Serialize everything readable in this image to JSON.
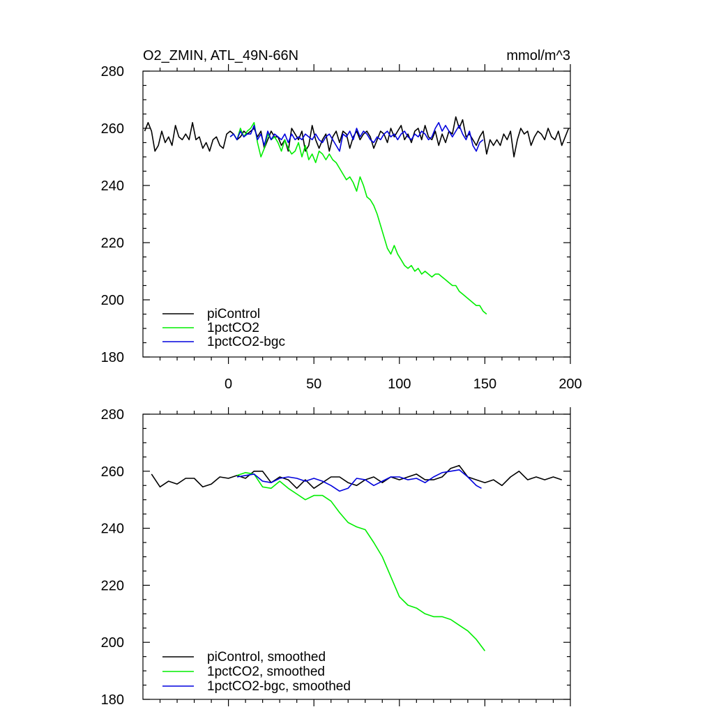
{
  "chart_data": [
    {
      "type": "line",
      "title": "O2_ZMIN, ATL_49N-66N",
      "units": "mmol/m^3",
      "xlim": [
        -50,
        200
      ],
      "ylim": [
        180,
        280
      ],
      "xticks": [
        0,
        50,
        100,
        150,
        200
      ],
      "yticks": [
        180,
        200,
        220,
        240,
        260,
        280
      ],
      "legend_position": "bottom-left",
      "series": [
        {
          "name": "piControl",
          "color": "#000000",
          "x": [
            -49,
            -47,
            -45,
            -43,
            -41,
            -39,
            -37,
            -35,
            -33,
            -31,
            -29,
            -27,
            -25,
            -23,
            -21,
            -19,
            -17,
            -15,
            -13,
            -11,
            -9,
            -7,
            -5,
            -3,
            -1,
            1,
            3,
            5,
            7,
            9,
            11,
            13,
            15,
            17,
            19,
            21,
            23,
            25,
            27,
            29,
            31,
            33,
            35,
            37,
            39,
            41,
            43,
            45,
            47,
            49,
            51,
            53,
            55,
            57,
            59,
            61,
            63,
            65,
            67,
            69,
            71,
            73,
            75,
            77,
            79,
            81,
            83,
            85,
            87,
            89,
            91,
            93,
            95,
            97,
            99,
            101,
            103,
            105,
            107,
            109,
            111,
            113,
            115,
            117,
            119,
            121,
            123,
            125,
            127,
            129,
            131,
            133,
            135,
            137,
            139,
            141,
            143,
            145,
            147,
            149,
            151,
            153,
            155,
            157,
            159,
            161,
            163,
            165,
            167,
            169,
            171,
            173,
            175,
            177,
            179,
            181,
            183,
            185,
            187,
            189,
            191,
            193,
            195,
            197,
            199
          ],
          "values": [
            259,
            262,
            259,
            252,
            254,
            259,
            255,
            257,
            254,
            261,
            257,
            256,
            258,
            256,
            262,
            256,
            257,
            253,
            255,
            252,
            256,
            257,
            254,
            253,
            258,
            259,
            258,
            256,
            257,
            259,
            258,
            259,
            260,
            257,
            259,
            253,
            256,
            259,
            257,
            257,
            254,
            256,
            252,
            260,
            258,
            256,
            259,
            252,
            254,
            261,
            256,
            253,
            256,
            258,
            252,
            257,
            259,
            255,
            259,
            258,
            253,
            257,
            259,
            256,
            258,
            259,
            257,
            253,
            256,
            259,
            258,
            255,
            260,
            257,
            259,
            261,
            256,
            258,
            255,
            259,
            260,
            256,
            261,
            257,
            256,
            259,
            254,
            258,
            255,
            259,
            258,
            264,
            260,
            263,
            257,
            258,
            256,
            254,
            257,
            259,
            251,
            256,
            254,
            256,
            254,
            258,
            256,
            259,
            250,
            256,
            260,
            258,
            259,
            254,
            257,
            259,
            258,
            256,
            260,
            257,
            256,
            259,
            254,
            257,
            260
          ]
        },
        {
          "name": "1pctCO2",
          "color": "#00ee00",
          "x": [
            1,
            3,
            5,
            7,
            9,
            11,
            13,
            15,
            17,
            19,
            21,
            23,
            25,
            27,
            29,
            31,
            33,
            35,
            37,
            39,
            41,
            43,
            45,
            47,
            49,
            51,
            53,
            55,
            57,
            59,
            61,
            63,
            65,
            67,
            69,
            71,
            73,
            75,
            77,
            79,
            81,
            83,
            85,
            87,
            89,
            91,
            93,
            95,
            97,
            99,
            101,
            103,
            105,
            107,
            109,
            111,
            113,
            115,
            117,
            119,
            121,
            123,
            125,
            127,
            129,
            131,
            133,
            135,
            137,
            139,
            141,
            143,
            145,
            147,
            149,
            151
          ],
          "values": [
            257,
            258,
            256,
            260,
            257,
            259,
            260,
            262,
            255,
            250,
            253,
            258,
            256,
            257,
            255,
            252,
            256,
            253,
            251,
            252,
            255,
            250,
            254,
            249,
            251,
            248,
            252,
            251,
            249,
            251,
            249,
            248,
            246,
            244,
            242,
            243,
            241,
            238,
            243,
            240,
            236,
            235,
            233,
            230,
            226,
            222,
            218,
            216,
            219,
            216,
            214,
            212,
            211,
            212,
            210,
            211,
            209,
            210,
            209,
            208,
            209,
            209,
            208,
            207,
            206,
            205,
            205,
            203,
            202,
            201,
            200,
            199,
            198,
            198,
            196,
            195
          ]
        },
        {
          "name": "1pctCO2-bgc",
          "color": "#0000dd",
          "x": [
            1,
            3,
            5,
            7,
            9,
            11,
            13,
            15,
            17,
            19,
            21,
            23,
            25,
            27,
            29,
            31,
            33,
            35,
            37,
            39,
            41,
            43,
            45,
            47,
            49,
            51,
            53,
            55,
            57,
            59,
            61,
            63,
            65,
            67,
            69,
            71,
            73,
            75,
            77,
            79,
            81,
            83,
            85,
            87,
            89,
            91,
            93,
            95,
            97,
            99,
            101,
            103,
            105,
            107,
            109,
            111,
            113,
            115,
            117,
            119,
            121,
            123,
            125,
            127,
            129,
            131,
            133,
            135,
            137,
            139,
            141,
            143,
            145,
            147,
            149
          ],
          "values": [
            257,
            258,
            256,
            259,
            257,
            258,
            258,
            261,
            256,
            258,
            254,
            259,
            256,
            258,
            257,
            256,
            258,
            255,
            258,
            256,
            257,
            256,
            258,
            257,
            256,
            258,
            256,
            255,
            257,
            258,
            256,
            254,
            252,
            258,
            257,
            259,
            256,
            260,
            257,
            259,
            258,
            256,
            255,
            257,
            256,
            258,
            259,
            257,
            258,
            256,
            258,
            259,
            257,
            256,
            258,
            257,
            259,
            258,
            256,
            257,
            260,
            262,
            259,
            261,
            259,
            257,
            259,
            261,
            258,
            256,
            259,
            254,
            252,
            255,
            256
          ]
        }
      ]
    },
    {
      "type": "line",
      "xlim": [
        -50,
        200
      ],
      "ylim": [
        180,
        280
      ],
      "yticks": [
        180,
        200,
        220,
        240,
        260,
        280
      ],
      "legend_position": "bottom-left",
      "series": [
        {
          "name": "piControl, smoothed",
          "color": "#000000",
          "x": [
            -45,
            -40,
            -35,
            -30,
            -25,
            -20,
            -15,
            -10,
            -5,
            0,
            5,
            10,
            15,
            20,
            25,
            30,
            35,
            40,
            45,
            50,
            55,
            60,
            65,
            70,
            75,
            80,
            85,
            90,
            95,
            100,
            105,
            110,
            115,
            120,
            125,
            130,
            135,
            140,
            145,
            150,
            155,
            160,
            165,
            170,
            175,
            180,
            185,
            190,
            195
          ],
          "values": [
            259,
            254.5,
            256.5,
            255.5,
            257.5,
            257.5,
            254.5,
            255.5,
            258,
            257.5,
            258.5,
            257.5,
            260,
            260,
            256,
            258,
            257,
            254,
            257,
            254,
            256,
            258,
            258,
            256,
            255,
            257,
            258,
            256,
            258,
            257,
            258,
            259,
            257,
            257,
            258,
            261,
            262,
            258,
            257,
            256,
            257,
            255,
            258,
            260,
            257,
            258,
            257,
            258,
            257
          ]
        },
        {
          "name": "1pctCO2, smoothed",
          "color": "#00ee00",
          "x": [
            5,
            10,
            15,
            20,
            25,
            30,
            35,
            40,
            45,
            50,
            55,
            60,
            65,
            70,
            75,
            80,
            85,
            90,
            95,
            100,
            105,
            110,
            115,
            120,
            125,
            130,
            135,
            140,
            145,
            150
          ],
          "values": [
            258.5,
            259.5,
            259,
            254.5,
            254,
            256.5,
            254,
            252,
            250,
            251.5,
            251.5,
            249.5,
            245.5,
            242,
            240.5,
            239.5,
            235,
            230,
            223,
            216,
            213,
            212,
            210,
            209,
            209,
            208,
            206,
            204,
            201,
            197
          ]
        },
        {
          "name": "1pctCO2-bgc, smoothed",
          "color": "#0000dd",
          "x": [
            5,
            10,
            15,
            20,
            25,
            30,
            35,
            40,
            45,
            50,
            55,
            60,
            65,
            70,
            75,
            80,
            85,
            90,
            95,
            100,
            105,
            110,
            115,
            120,
            125,
            130,
            135,
            140,
            145,
            148
          ],
          "values": [
            258,
            258.5,
            259,
            256.5,
            256,
            257.5,
            258,
            257.5,
            256.5,
            257.5,
            256.5,
            255,
            253,
            254,
            257.5,
            257,
            255,
            256.5,
            258,
            258,
            257,
            257.5,
            256,
            258,
            259.5,
            260,
            260.5,
            258,
            255,
            254
          ]
        }
      ]
    }
  ]
}
